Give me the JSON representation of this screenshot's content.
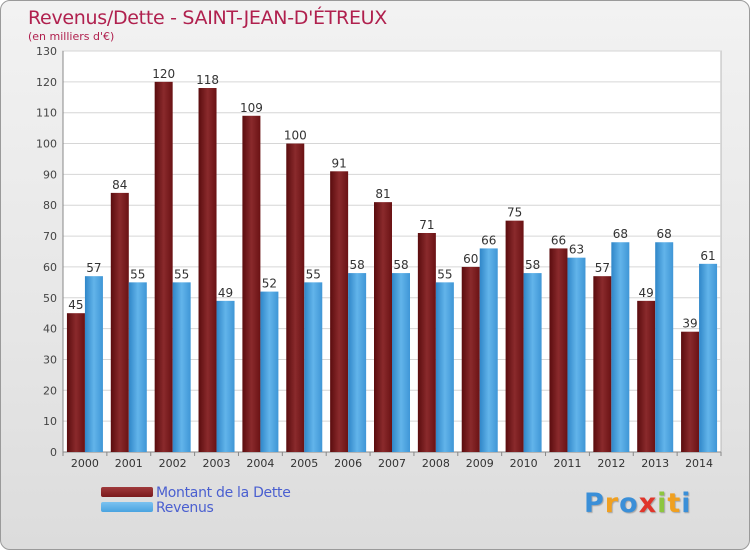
{
  "title": "Revenus/Dette - SAINT-JEAN-D'ÉTREUX",
  "subtitle": "(en milliers d'€)",
  "legend": {
    "debt_label": "Montant de la Dette",
    "revenue_label": "Revenus"
  },
  "logo": [
    "P",
    "r",
    "o",
    "x",
    "i",
    "t",
    "i"
  ],
  "colors": {
    "debt": "#7a1a1c",
    "revenue": "#4aa3e0",
    "title": "#b0204e",
    "legend_text": "#4a5fd0"
  },
  "chart_data": {
    "type": "bar",
    "categories": [
      "2000",
      "2001",
      "2002",
      "2003",
      "2004",
      "2005",
      "2006",
      "2007",
      "2008",
      "2009",
      "2010",
      "2011",
      "2012",
      "2013",
      "2014"
    ],
    "series": [
      {
        "name": "Montant de la Dette",
        "values": [
          45,
          84,
          120,
          118,
          109,
          100,
          91,
          81,
          71,
          60,
          75,
          66,
          57,
          49,
          39
        ]
      },
      {
        "name": "Revenus",
        "values": [
          57,
          55,
          55,
          49,
          52,
          55,
          58,
          58,
          55,
          66,
          58,
          63,
          68,
          68,
          61
        ]
      }
    ],
    "ylim": [
      0,
      130
    ],
    "yticks": [
      0,
      10,
      20,
      30,
      40,
      50,
      60,
      70,
      80,
      90,
      100,
      110,
      120,
      130
    ],
    "grid": true,
    "legend_position": "bottom-left"
  }
}
